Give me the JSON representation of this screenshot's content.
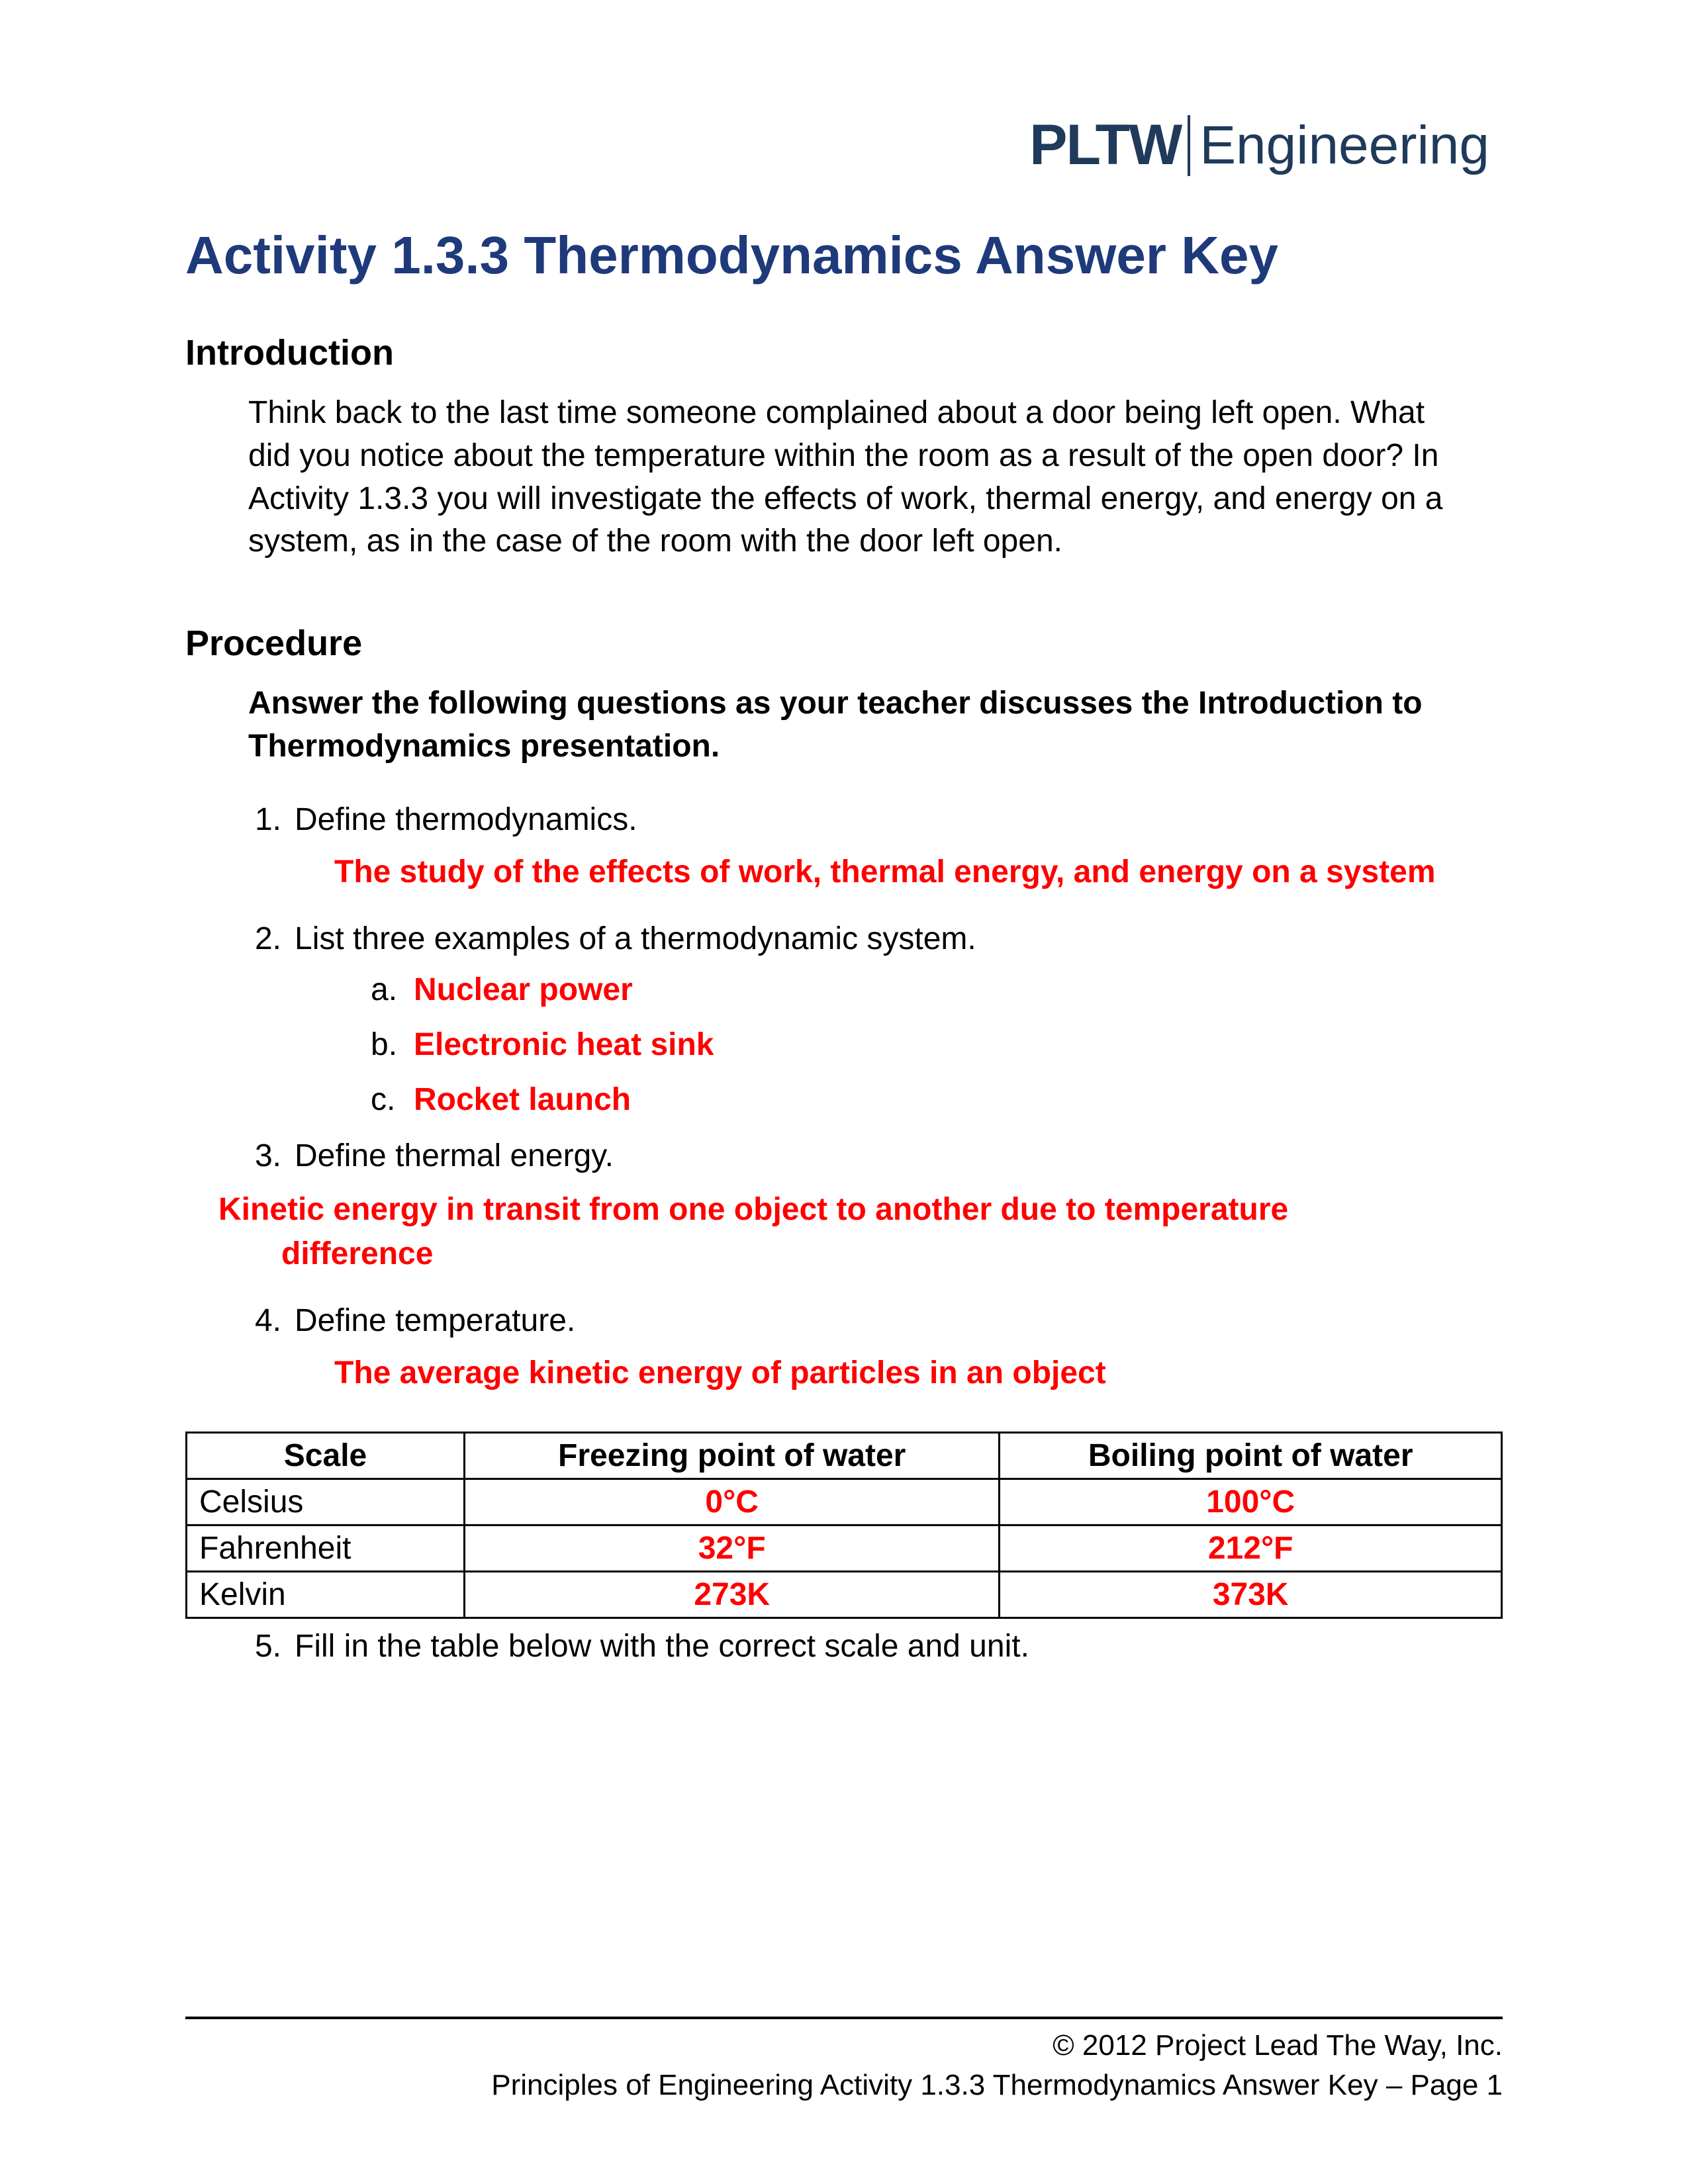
{
  "logo": {
    "brand": "PLTW",
    "program": "Engineering"
  },
  "title": "Activity 1.3.3 Thermodynamics Answer Key",
  "introduction": {
    "heading": "Introduction",
    "body": "Think back to the last time someone complained about a door being left open. What did you notice about the temperature within the room as a result of the open door? In Activity 1.3.3 you will investigate the effects of work, thermal energy, and energy on a system, as in the case of the room with the door left open."
  },
  "procedure": {
    "heading": "Procedure",
    "intro": "Answer the following questions as your teacher discusses the Introduction to Thermodynamics presentation.",
    "q1": {
      "num": "1.",
      "text": "Define thermodynamics.",
      "answer": "The study of the effects of work, thermal energy, and energy on a system"
    },
    "q2": {
      "num": "2.",
      "text": "List three examples of a thermodynamic system.",
      "a": {
        "letter": "a.",
        "answer": "Nuclear power"
      },
      "b": {
        "letter": "b.",
        "answer": "Electronic heat sink"
      },
      "c": {
        "letter": "c.",
        "answer": "Rocket launch"
      }
    },
    "q3": {
      "num": "3.",
      "text": "Define thermal energy.",
      "answer": "Kinetic energy in transit from one object to another due to temperature difference"
    },
    "q4": {
      "num": "4.",
      "text": "Define temperature.",
      "answer": "The average kinetic energy of particles in an object"
    },
    "q5": {
      "num": "5.",
      "text": "Fill in the table below with the correct scale and unit."
    }
  },
  "table": {
    "headers": {
      "scale": "Scale",
      "freeze": "Freezing point of water",
      "boil": "Boiling point of water"
    },
    "rows": {
      "r0": {
        "scale": "Celsius",
        "freeze": "0°C",
        "boil": "100°C"
      },
      "r1": {
        "scale": "Fahrenheit",
        "freeze": "32°F",
        "boil": "212°F"
      },
      "r2": {
        "scale": "Kelvin",
        "freeze": "273K",
        "boil": "373K"
      }
    }
  },
  "footer": {
    "copyright": "© 2012 Project Lead The Way, Inc.",
    "pageinfo": "Principles of Engineering Activity 1.3.3 Thermodynamics Answer Key – Page 1"
  },
  "colors": {
    "title": "#1f3a7a",
    "answer": "#ff0000",
    "logo": "#1f3a5a",
    "text": "#000000",
    "background": "#ffffff"
  }
}
